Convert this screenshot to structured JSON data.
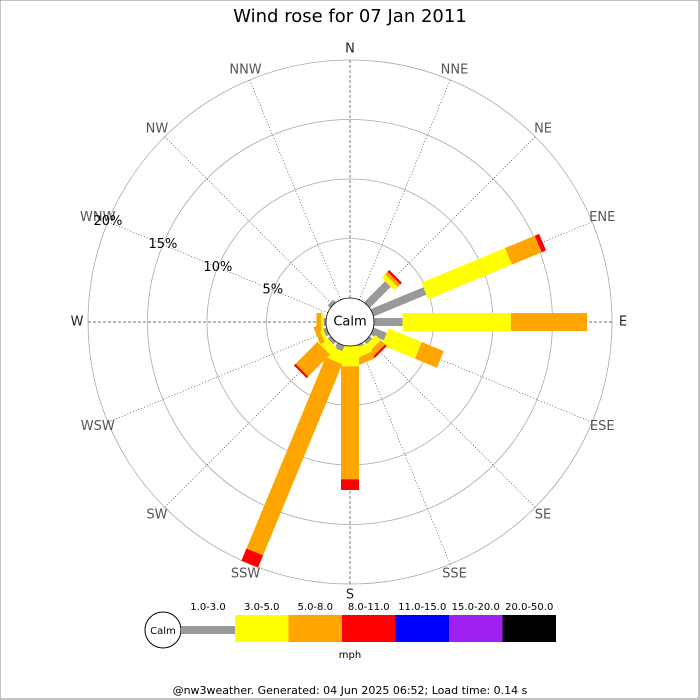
{
  "chart_data": {
    "type": "windrose",
    "title": "Wind rose for 07 Jan 2011",
    "categories": [
      "N",
      "NNE",
      "NE",
      "ENE",
      "E",
      "ESE",
      "SE",
      "SSE",
      "S",
      "SSW",
      "SW",
      "WSW",
      "W",
      "WNW",
      "NW",
      "NNW"
    ],
    "series": [
      {
        "name": "1.0-3.0",
        "color": "#999999",
        "values": [
          0,
          0,
          2.5,
          4.8,
          2.4,
          1.2,
          0.3,
          0.2,
          0,
          0.5,
          0.3,
          0.3,
          0.2,
          0,
          0.3,
          0
        ]
      },
      {
        "name": "3.0-5.0",
        "color": "#ffff00",
        "values": [
          0,
          0,
          0.4,
          7.6,
          9.1,
          3.0,
          0.6,
          0.8,
          1.7,
          1.0,
          0.8,
          0.3,
          0.2,
          0,
          0,
          0
        ]
      },
      {
        "name": "5.0-8.0",
        "color": "#ffa500",
        "values": [
          0,
          0,
          0.3,
          2.7,
          6.4,
          2.0,
          0.5,
          0.6,
          9.5,
          17.4,
          2.6,
          0.4,
          0.4,
          0,
          0,
          0
        ]
      },
      {
        "name": "8.0-11.0",
        "color": "#ff0000",
        "values": [
          0,
          0,
          0.2,
          0.4,
          0,
          0,
          0.2,
          0,
          0.9,
          1.1,
          0.2,
          0,
          0,
          0,
          0,
          0
        ]
      },
      {
        "name": "11.0-15.0",
        "color": "#0000ff",
        "values": [
          0,
          0,
          0,
          0,
          0,
          0,
          0,
          0,
          0,
          0,
          0,
          0,
          0,
          0,
          0,
          0
        ]
      },
      {
        "name": "15.0-20.0",
        "color": "#a020f0",
        "values": [
          0,
          0,
          0,
          0,
          0,
          0,
          0,
          0,
          0,
          0,
          0,
          0,
          0,
          0,
          0,
          0
        ]
      },
      {
        "name": "20.0-50.0",
        "color": "#000000",
        "values": [
          0,
          0,
          0,
          0,
          0,
          0,
          0,
          0,
          0,
          0,
          0,
          0,
          0,
          0,
          0,
          0
        ]
      }
    ],
    "rlim": [
      0,
      20
    ],
    "rticks": [
      {
        "value": 5,
        "label": "5%"
      },
      {
        "value": 10,
        "label": "10%"
      },
      {
        "value": 15,
        "label": "15%"
      },
      {
        "value": 20,
        "label": "20%"
      }
    ],
    "calm_label": "Calm",
    "unit_label": "mph",
    "footer": "@nw3weather. Generated: 04 Jun 2025 06:52; Load time: 0.14 s"
  }
}
